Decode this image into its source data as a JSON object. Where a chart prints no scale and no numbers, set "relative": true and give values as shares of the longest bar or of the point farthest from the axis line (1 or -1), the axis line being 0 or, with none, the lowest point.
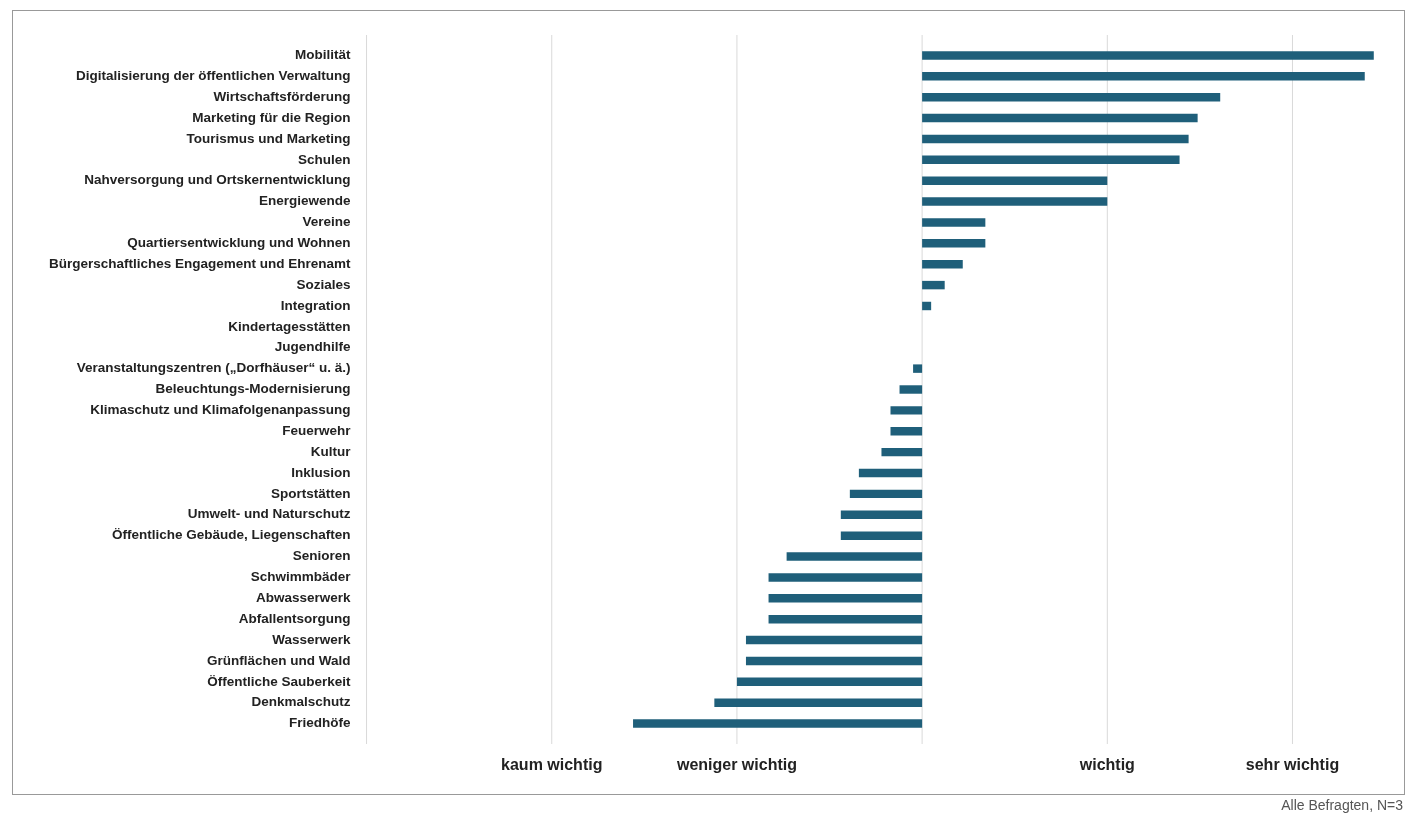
{
  "chart_data": {
    "type": "bar",
    "orientation": "horizontal",
    "relative": true,
    "categories": [
      "Mobilität",
      "Digitalisierung der öffentlichen Verwaltung",
      "Wirtschaftsförderung",
      "Marketing für die Region",
      "Tourismus und Marketing",
      "Schulen",
      "Nahversorgung und Ortskernentwicklung",
      "Energiewende",
      "Vereine",
      "Quartiersentwicklung und Wohnen",
      "Bürgerschaftliches Engagement und Ehrenamt",
      "Soziales",
      "Integration",
      "Kindertagesstätten",
      "Jugendhilfe",
      "Veranstaltungszentren („Dorfhäuser“ u. ä.)",
      "Beleuchtungs-Modernisierung",
      "Klimaschutz und Klimafolgenanpassung",
      "Feuerwehr",
      "Kultur",
      "Inklusion",
      "Sportstätten",
      "Umwelt- und Naturschutz",
      "Öffentliche Gebäude, Liegenschaften",
      "Senioren",
      "Schwimmbäder",
      "Abwasserwerk",
      "Abfallentsorgung",
      "Wasserwerk",
      "Grünflächen und Wald",
      "Öffentliche Sauberkeit",
      "Denkmalschutz",
      "Friedhöfe"
    ],
    "values": [
      1,
      0.98,
      0.66,
      0.61,
      0.59,
      0.57,
      0.41,
      0.41,
      0.14,
      0.14,
      0.09,
      0.05,
      0.02,
      0,
      0,
      -0.02,
      -0.05,
      -0.07,
      -0.07,
      -0.09,
      -0.14,
      -0.16,
      -0.18,
      -0.18,
      -0.3,
      -0.34,
      -0.34,
      -0.34,
      -0.39,
      -0.39,
      -0.41,
      -0.46,
      -0.64
    ],
    "color": "#1f5f7a",
    "ref_lines": [
      {
        "axis": "x",
        "value": -1.23,
        "label": null
      },
      {
        "axis": "x",
        "value": -0.82,
        "label": "kaum wichtig"
      },
      {
        "axis": "x",
        "value": -0.41,
        "label": "weniger wichtig"
      },
      {
        "axis": "x",
        "value": 0,
        "label": null
      },
      {
        "axis": "x",
        "value": 0.41,
        "label": "wichtig"
      },
      {
        "axis": "x",
        "value": 0.82,
        "label": "sehr wichtig"
      }
    ],
    "annotations": [
      "Alle Befragten, N=3"
    ]
  }
}
